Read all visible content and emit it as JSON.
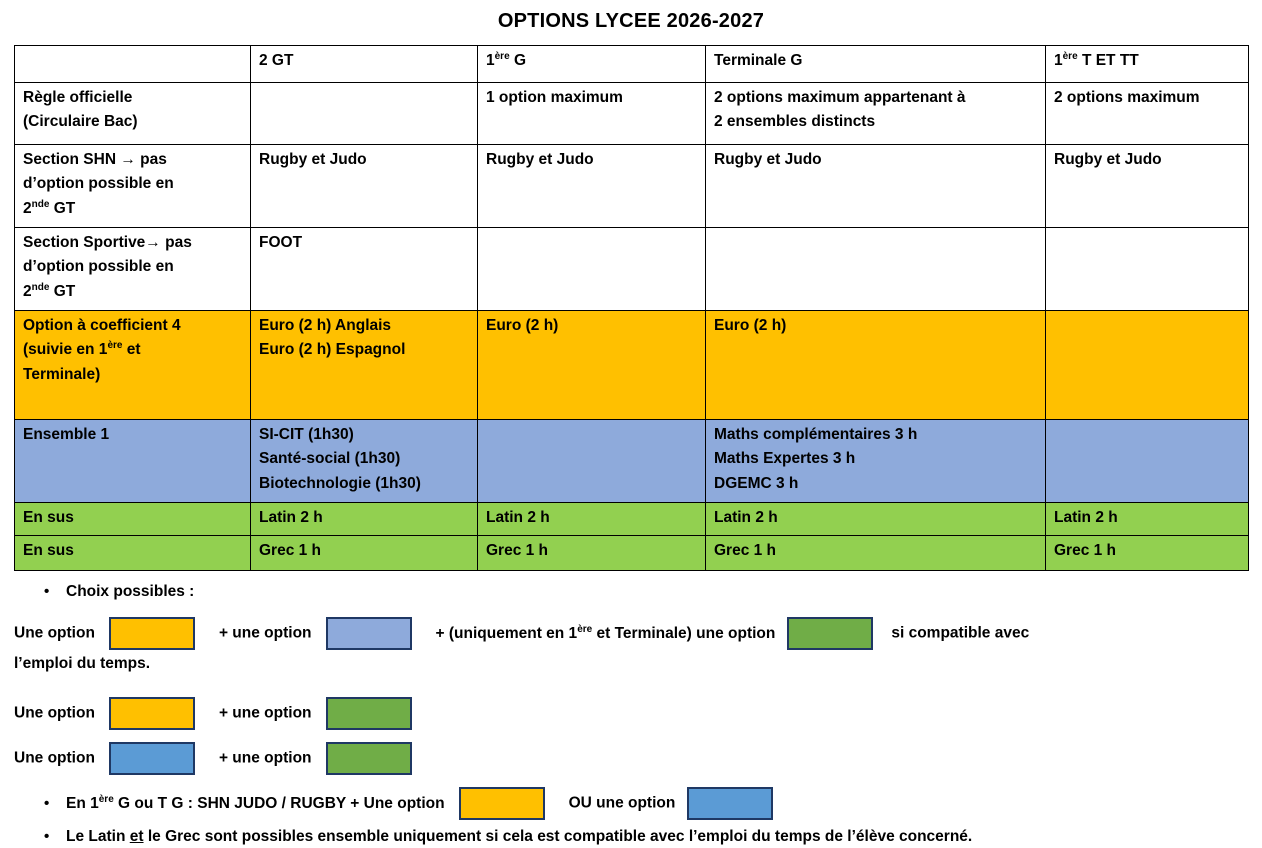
{
  "title": "OPTIONS LYCEE 2026-2027",
  "colors": {
    "orange": "#FFC000",
    "table_blue": "#8EAADB",
    "table_green": "#92D050",
    "legend_green": "#70AD47",
    "legend_blue": "#5B9BD5",
    "swatch_border": "#1F3864"
  },
  "table": {
    "header": [
      [],
      [
        {
          "t": "2 GT"
        }
      ],
      [
        {
          "t": "1"
        },
        {
          "t": "ère",
          "s": 1
        },
        {
          "t": " G"
        }
      ],
      [
        {
          "t": "Terminale G"
        }
      ],
      [
        {
          "t": "1"
        },
        {
          "t": "ère",
          "s": 1
        },
        {
          "t": " T ET TT"
        }
      ]
    ],
    "rows": [
      {
        "cells": [
          [
            {
              "t": "Règle officielle"
            },
            {
              "b": 1
            },
            {
              "t": "(Circulaire Bac)"
            }
          ],
          [],
          [
            {
              "t": "1 option maximum"
            }
          ],
          [
            {
              "t": "2 options maximum appartenant à"
            },
            {
              "b": 1
            },
            {
              "t": "2 ensembles distincts"
            }
          ],
          [
            {
              "t": "2 options maximum"
            }
          ]
        ]
      },
      {
        "cells": [
          [
            {
              "t": "Section SHN → pas"
            },
            {
              "b": 1
            },
            {
              "t": "d’option possible en"
            },
            {
              "b": 1
            },
            {
              "t": "2"
            },
            {
              "t": "nde",
              "s": 1
            },
            {
              "t": " GT"
            }
          ],
          [
            {
              "t": "Rugby et Judo"
            }
          ],
          [
            {
              "t": "Rugby et Judo"
            }
          ],
          [
            {
              "t": "Rugby et Judo"
            }
          ],
          [
            {
              "t": "Rugby et Judo"
            }
          ]
        ]
      },
      {
        "cells": [
          [
            {
              "t": "Section Sportive→ pas"
            },
            {
              "b": 1
            },
            {
              "t": "d’option possible en"
            },
            {
              "b": 1
            },
            {
              "t": "2"
            },
            {
              "t": "nde",
              "s": 1
            },
            {
              "t": " GT"
            }
          ],
          [
            {
              "t": "FOOT"
            }
          ],
          [],
          [],
          []
        ]
      },
      {
        "bg": "orange",
        "cells": [
          [
            {
              "t": "Option à coefficient 4"
            },
            {
              "b": 1
            },
            {
              "t": "(suivie en 1"
            },
            {
              "t": "ère",
              "s": 1
            },
            {
              "t": " et"
            },
            {
              "b": 1
            },
            {
              "t": "Terminale)"
            }
          ],
          [
            {
              "t": "Euro (2 h) Anglais"
            },
            {
              "b": 1
            },
            {
              "t": "Euro (2 h) Espagnol"
            }
          ],
          [
            {
              "t": "Euro (2 h)"
            }
          ],
          [
            {
              "t": "Euro (2 h)"
            }
          ],
          []
        ]
      },
      {
        "bg": "table_blue",
        "cells": [
          [
            {
              "t": "Ensemble 1"
            }
          ],
          [
            {
              "t": "SI-CIT (1h30)"
            },
            {
              "b": 1
            },
            {
              "t": "Santé-social (1h30)"
            },
            {
              "b": 1
            },
            {
              "t": "Biotechnologie (1h30)"
            }
          ],
          [],
          [
            {
              "t": "Maths complémentaires 3 h"
            },
            {
              "b": 1
            },
            {
              "t": "Maths Expertes 3 h"
            },
            {
              "b": 1
            },
            {
              "t": "DGEMC 3 h"
            }
          ],
          []
        ]
      },
      {
        "bg": "table_green",
        "cells": [
          [
            {
              "t": "En sus"
            }
          ],
          [
            {
              "t": "Latin 2 h"
            }
          ],
          [
            {
              "t": "Latin 2 h"
            }
          ],
          [
            {
              "t": "Latin 2 h"
            }
          ],
          [
            {
              "t": "Latin 2 h"
            }
          ]
        ]
      },
      {
        "bg": "table_green",
        "cells": [
          [
            {
              "t": "En sus"
            }
          ],
          [
            {
              "t": "Grec 1 h"
            }
          ],
          [
            {
              "t": "Grec 1 h"
            }
          ],
          [
            {
              "t": "Grec 1 h"
            }
          ],
          [
            {
              "t": "Grec 1 h"
            }
          ]
        ]
      }
    ]
  },
  "legend": {
    "heading": "Choix possibles :",
    "line1_a": [
      {
        "t": "Une option"
      }
    ],
    "line1_b": [
      {
        "t": "+ une option"
      }
    ],
    "line1_c": [
      {
        "t": "+ (uniquement en 1"
      },
      {
        "t": "ère",
        "s": 1
      },
      {
        "t": " et Terminale) une option"
      }
    ],
    "line1_d": [
      {
        "t": "si compatible avec"
      },
      {
        "b": 1
      },
      {
        "t": "l’emploi du temps."
      }
    ],
    "line2_a": [
      {
        "t": "Une option"
      }
    ],
    "line2_b": [
      {
        "t": "+ une option"
      }
    ],
    "line3_a": [
      {
        "t": "Une option"
      }
    ],
    "line3_b": [
      {
        "t": "+ une option"
      }
    ],
    "bullet2_a": [
      {
        "t": "En 1"
      },
      {
        "t": "ère",
        "s": 1
      },
      {
        "t": " G ou T G : SHN JUDO / RUGBY + Une option"
      }
    ],
    "bullet2_b": [
      {
        "t": "OU une option"
      }
    ],
    "bullet3": [
      {
        "t": "Le Latin "
      },
      {
        "t": "et",
        "u": 1
      },
      {
        "t": " le Grec sont possibles ensemble uniquement si cela est compatible avec l’emploi du temps de l’élève concerné."
      }
    ]
  }
}
